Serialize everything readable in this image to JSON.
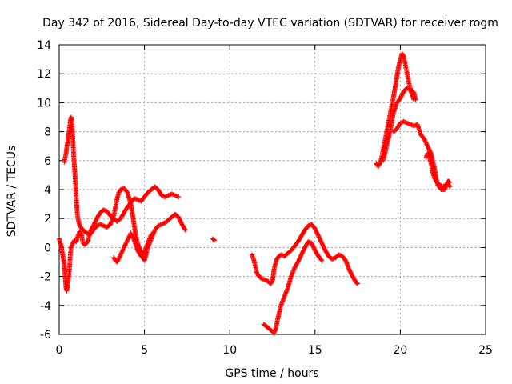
{
  "chart_data": {
    "type": "scatter",
    "title": "Day 342 of 2016, Sidereal Day-to-day VTEC variation (SDTVAR) for receiver rogm",
    "xlabel": "GPS time / hours",
    "ylabel": "SDTVAR / TECUs",
    "xlim": [
      0,
      25
    ],
    "ylim": [
      -6,
      14
    ],
    "xticks": [
      0,
      5,
      10,
      15,
      20,
      25
    ],
    "yticks": [
      -6,
      -4,
      -2,
      0,
      2,
      4,
      6,
      8,
      10,
      12,
      14
    ],
    "grid": true,
    "marker": "+",
    "color": "#ff0000",
    "series": [
      {
        "name": "segment-1",
        "points": [
          [
            0.0,
            0.6
          ],
          [
            0.1,
            0.2
          ],
          [
            0.2,
            -0.5
          ],
          [
            0.3,
            -1.2
          ],
          [
            0.35,
            -2.0
          ],
          [
            0.4,
            -2.8
          ],
          [
            0.45,
            -3.0
          ],
          [
            0.5,
            -2.6
          ],
          [
            0.55,
            -2.0
          ],
          [
            0.6,
            -1.5
          ],
          [
            0.65,
            -0.5
          ],
          [
            0.7,
            0.0
          ],
          [
            0.8,
            0.3
          ],
          [
            0.9,
            0.5
          ],
          [
            1.0,
            0.4
          ],
          [
            1.1,
            0.8
          ],
          [
            1.2,
            1.1
          ],
          [
            1.3,
            0.9
          ],
          [
            1.4,
            0.3
          ],
          [
            1.5,
            0.2
          ],
          [
            1.6,
            0.3
          ],
          [
            1.7,
            0.5
          ],
          [
            1.8,
            1.0
          ],
          [
            1.9,
            1.3
          ],
          [
            2.0,
            1.5
          ],
          [
            2.2,
            2.0
          ],
          [
            2.4,
            2.4
          ],
          [
            2.6,
            2.6
          ],
          [
            2.8,
            2.5
          ],
          [
            3.0,
            2.2
          ],
          [
            3.2,
            2.0
          ],
          [
            3.4,
            1.8
          ],
          [
            3.6,
            2.0
          ],
          [
            3.8,
            2.4
          ],
          [
            4.0,
            2.8
          ],
          [
            4.2,
            3.1
          ],
          [
            4.4,
            3.4
          ],
          [
            4.6,
            3.3
          ],
          [
            4.8,
            3.2
          ],
          [
            5.0,
            3.5
          ],
          [
            5.2,
            3.8
          ],
          [
            5.4,
            4.0
          ],
          [
            5.6,
            4.2
          ],
          [
            5.8,
            4.0
          ],
          [
            6.0,
            3.6
          ],
          [
            6.2,
            3.5
          ],
          [
            6.4,
            3.6
          ],
          [
            6.6,
            3.7
          ],
          [
            6.8,
            3.6
          ],
          [
            7.0,
            3.5
          ]
        ]
      },
      {
        "name": "segment-2",
        "points": [
          [
            0.3,
            5.9
          ],
          [
            0.4,
            6.5
          ],
          [
            0.45,
            7.0
          ],
          [
            0.5,
            7.3
          ],
          [
            0.55,
            7.8
          ],
          [
            0.6,
            8.2
          ],
          [
            0.65,
            8.7
          ],
          [
            0.7,
            9.0
          ],
          [
            0.75,
            8.5
          ],
          [
            0.8,
            7.5
          ],
          [
            0.85,
            6.3
          ],
          [
            0.9,
            5.5
          ],
          [
            0.95,
            4.5
          ],
          [
            1.0,
            3.5
          ],
          [
            1.05,
            2.5
          ],
          [
            1.1,
            2.0
          ],
          [
            1.2,
            1.5
          ],
          [
            1.4,
            1.2
          ],
          [
            1.6,
            1.0
          ],
          [
            1.8,
            0.9
          ],
          [
            2.0,
            1.2
          ],
          [
            2.2,
            1.5
          ],
          [
            2.4,
            1.6
          ],
          [
            2.6,
            1.5
          ],
          [
            2.8,
            1.4
          ],
          [
            3.0,
            1.6
          ],
          [
            3.2,
            2.2
          ],
          [
            3.3,
            2.8
          ],
          [
            3.4,
            3.4
          ],
          [
            3.5,
            3.8
          ],
          [
            3.6,
            4.0
          ],
          [
            3.8,
            4.1
          ],
          [
            4.0,
            3.8
          ],
          [
            4.2,
            3.0
          ],
          [
            4.3,
            2.3
          ],
          [
            4.4,
            1.5
          ],
          [
            4.5,
            0.8
          ],
          [
            4.6,
            0.3
          ],
          [
            4.7,
            0.0
          ],
          [
            4.8,
            -0.3
          ],
          [
            4.9,
            -0.7
          ],
          [
            5.0,
            -0.9
          ],
          [
            5.1,
            -0.5
          ],
          [
            5.2,
            0.0
          ],
          [
            5.4,
            0.6
          ],
          [
            5.6,
            1.2
          ],
          [
            5.8,
            1.5
          ],
          [
            6.0,
            1.6
          ],
          [
            6.2,
            1.7
          ],
          [
            6.4,
            1.9
          ],
          [
            6.6,
            2.1
          ],
          [
            6.8,
            2.3
          ],
          [
            7.0,
            2.1
          ],
          [
            7.2,
            1.6
          ],
          [
            7.4,
            1.2
          ]
        ]
      },
      {
        "name": "segment-3",
        "points": [
          [
            3.2,
            -0.7
          ],
          [
            3.3,
            -0.9
          ],
          [
            3.4,
            -1.0
          ],
          [
            4.2,
            1.0
          ],
          [
            4.4,
            0.5
          ],
          [
            4.6,
            -0.2
          ],
          [
            4.8,
            -0.6
          ],
          [
            5.0,
            -0.3
          ],
          [
            5.2,
            0.3
          ],
          [
            5.4,
            0.9
          ]
        ]
      },
      {
        "name": "segment-4",
        "points": [
          [
            9.0,
            0.6
          ],
          [
            9.1,
            0.5
          ]
        ]
      },
      {
        "name": "segment-5",
        "points": [
          [
            11.3,
            -0.5
          ],
          [
            11.4,
            -0.8
          ],
          [
            11.5,
            -1.3
          ],
          [
            11.6,
            -1.8
          ],
          [
            11.8,
            -2.1
          ],
          [
            12.0,
            -2.2
          ],
          [
            12.2,
            -2.3
          ],
          [
            12.4,
            -2.5
          ],
          [
            12.5,
            -2.3
          ],
          [
            12.6,
            -1.5
          ],
          [
            12.7,
            -1.0
          ],
          [
            12.8,
            -0.7
          ],
          [
            13.0,
            -0.5
          ],
          [
            13.2,
            -0.6
          ],
          [
            13.4,
            -0.4
          ],
          [
            13.6,
            -0.2
          ],
          [
            13.8,
            0.1
          ],
          [
            14.0,
            0.4
          ],
          [
            14.2,
            0.8
          ],
          [
            14.4,
            1.2
          ],
          [
            14.6,
            1.5
          ],
          [
            14.8,
            1.6
          ],
          [
            15.0,
            1.3
          ],
          [
            15.2,
            0.8
          ],
          [
            15.4,
            0.3
          ],
          [
            15.6,
            -0.2
          ],
          [
            15.8,
            -0.6
          ],
          [
            16.0,
            -0.8
          ],
          [
            16.2,
            -0.7
          ],
          [
            16.4,
            -0.5
          ],
          [
            16.6,
            -0.6
          ],
          [
            16.8,
            -0.9
          ],
          [
            17.0,
            -1.5
          ],
          [
            17.2,
            -2.0
          ],
          [
            17.4,
            -2.4
          ],
          [
            17.5,
            -2.5
          ]
        ]
      },
      {
        "name": "segment-6",
        "points": [
          [
            12.0,
            -5.3
          ],
          [
            12.2,
            -5.5
          ],
          [
            12.4,
            -5.7
          ],
          [
            12.6,
            -5.9
          ],
          [
            12.7,
            -5.6
          ],
          [
            12.8,
            -5.0
          ],
          [
            12.9,
            -4.5
          ],
          [
            13.0,
            -4.0
          ],
          [
            13.2,
            -3.4
          ],
          [
            13.4,
            -2.8
          ],
          [
            13.6,
            -2.0
          ],
          [
            13.8,
            -1.4
          ],
          [
            14.0,
            -1.0
          ],
          [
            14.2,
            -0.5
          ],
          [
            14.4,
            0.0
          ],
          [
            14.6,
            0.4
          ],
          [
            14.8,
            0.3
          ],
          [
            15.0,
            -0.2
          ],
          [
            15.2,
            -0.6
          ],
          [
            15.4,
            -0.9
          ]
        ]
      },
      {
        "name": "segment-7",
        "points": [
          [
            18.6,
            5.8
          ],
          [
            18.7,
            5.6
          ],
          [
            18.8,
            5.8
          ],
          [
            18.9,
            6.2
          ],
          [
            19.0,
            6.8
          ],
          [
            19.1,
            7.4
          ],
          [
            19.2,
            8.0
          ],
          [
            19.3,
            8.6
          ],
          [
            19.4,
            9.2
          ],
          [
            19.5,
            9.8
          ],
          [
            19.6,
            10.4
          ],
          [
            19.7,
            11.1
          ],
          [
            19.8,
            11.8
          ],
          [
            19.9,
            12.5
          ],
          [
            20.0,
            13.0
          ],
          [
            20.1,
            13.4
          ],
          [
            20.2,
            13.2
          ],
          [
            20.3,
            12.6
          ],
          [
            20.4,
            12.0
          ],
          [
            20.5,
            11.4
          ],
          [
            20.6,
            10.9
          ],
          [
            20.7,
            10.5
          ],
          [
            20.8,
            10.2
          ]
        ]
      },
      {
        "name": "segment-8",
        "points": [
          [
            19.0,
            6.0
          ],
          [
            19.2,
            7.0
          ],
          [
            19.4,
            8.0
          ],
          [
            19.6,
            9.3
          ],
          [
            19.8,
            10.0
          ],
          [
            20.0,
            10.3
          ],
          [
            20.2,
            10.8
          ],
          [
            20.4,
            11.0
          ],
          [
            20.6,
            10.9
          ],
          [
            20.8,
            10.7
          ],
          [
            20.9,
            10.2
          ]
        ]
      },
      {
        "name": "segment-9",
        "points": [
          [
            19.6,
            8.0
          ],
          [
            19.8,
            8.2
          ],
          [
            20.0,
            8.6
          ],
          [
            20.2,
            8.7
          ],
          [
            20.4,
            8.6
          ],
          [
            20.6,
            8.5
          ],
          [
            20.8,
            8.4
          ],
          [
            21.0,
            8.5
          ],
          [
            21.2,
            7.8
          ],
          [
            21.4,
            7.5
          ],
          [
            21.6,
            7.0
          ],
          [
            21.8,
            6.5
          ],
          [
            22.0,
            5.5
          ],
          [
            22.1,
            4.8
          ],
          [
            22.2,
            4.3
          ],
          [
            22.4,
            4.0
          ],
          [
            22.6,
            4.0
          ],
          [
            22.7,
            4.3
          ],
          [
            22.8,
            4.6
          ],
          [
            22.9,
            4.5
          ]
        ]
      },
      {
        "name": "segment-10",
        "points": [
          [
            21.5,
            6.2
          ],
          [
            21.6,
            6.5
          ],
          [
            21.7,
            6.3
          ],
          [
            21.8,
            5.8
          ],
          [
            21.9,
            5.2
          ],
          [
            22.0,
            4.8
          ],
          [
            22.2,
            4.4
          ],
          [
            22.5,
            4.2
          ],
          [
            22.8,
            4.4
          ],
          [
            22.9,
            4.2
          ]
        ]
      }
    ]
  }
}
